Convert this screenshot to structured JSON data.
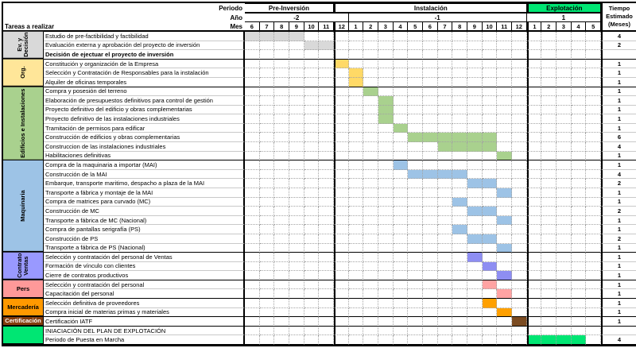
{
  "header": {
    "periodo_label": "Periodo",
    "ano_label": "Año",
    "mes_label": "Mes",
    "tareas_label": "Tareas a realizar",
    "tiempo_label": "Tiempo Estimado (Meses)",
    "periods": [
      {
        "label": "Pre-Inversión",
        "cols": 6,
        "bg": "#FFFFFF"
      },
      {
        "label": "Instalación",
        "cols": 13,
        "bg": "#FFFFFF"
      },
      {
        "label": "Explotación",
        "cols": 5,
        "bg": "#00E673"
      }
    ],
    "years": [
      {
        "label": "-2",
        "cols": 7
      },
      {
        "label": "-1",
        "cols": 12
      },
      {
        "label": "1",
        "cols": 5
      }
    ],
    "months": [
      "6",
      "7",
      "8",
      "9",
      "10",
      "11",
      "12",
      "1",
      "2",
      "3",
      "4",
      "5",
      "6",
      "7",
      "8",
      "9",
      "10",
      "11",
      "12",
      "1",
      "2",
      "3",
      "4",
      "5"
    ]
  },
  "groups": [
    {
      "label": "Ev. y Decisión",
      "bg": "#D9D9D9",
      "fg": "#000000",
      "orientation": "vertical",
      "span": 3
    },
    {
      "label": "Org.",
      "bg": "#FFE699",
      "fg": "#000000",
      "orientation": "vertical",
      "span": 3
    },
    {
      "label": "Edificios e Instalaciones",
      "bg": "#A9D18E",
      "fg": "#000000",
      "orientation": "vertical",
      "span": 8
    },
    {
      "label": "Maquinaria",
      "bg": "#9DC3E6",
      "fg": "#000000",
      "orientation": "vertical",
      "span": 10
    },
    {
      "label": "Contrato Ventas",
      "bg": "#9999FF",
      "fg": "#000000",
      "orientation": "vertical",
      "span": 3
    },
    {
      "label": "Pers",
      "bg": "#FF9999",
      "fg": "#000000",
      "orientation": "horizontal",
      "span": 2
    },
    {
      "label": "Mercadería",
      "bg": "#FF9900",
      "fg": "#000000",
      "orientation": "horizontal",
      "span": 2
    },
    {
      "label": "Certificación",
      "bg": "#843C0C",
      "fg": "#FFFFFF",
      "orientation": "horizontal",
      "span": 1
    },
    {
      "label": "",
      "bg": "#00E673",
      "fg": "#000000",
      "orientation": "horizontal",
      "span": 2
    }
  ],
  "chart_data": {
    "type": "table",
    "subtype": "gantt",
    "title": "",
    "month_columns": 24,
    "x_axis": "Meses (Año -2: 6-12, Año -1: 1-12, Año 1: 1-5)",
    "tasks": [
      {
        "task": "Estudio de pre-factibilidad y factibilidad",
        "tiempo": "4",
        "bold": false,
        "bar": {
          "start": 1,
          "len": 4,
          "color": "#D9D9D9"
        }
      },
      {
        "task": "Evaluación externa y aprobación del proyecto de inversión",
        "tiempo": "2",
        "bold": false,
        "bar": {
          "start": 5,
          "len": 2,
          "color": "#D9D9D9"
        }
      },
      {
        "task": "Decisión de ejectuar el proyecto de inversión",
        "tiempo": "",
        "bold": true,
        "bar": null
      },
      {
        "task": "Constitución y organización de la Empresa",
        "tiempo": "1",
        "bold": false,
        "bar": {
          "start": 7,
          "len": 1,
          "color": "#FFD966"
        }
      },
      {
        "task": "Selección y Contratación de Responsables para la instalación",
        "tiempo": "1",
        "bold": false,
        "bar": {
          "start": 8,
          "len": 1,
          "color": "#FFD966"
        }
      },
      {
        "task": "Alquiler de oficinas temporales",
        "tiempo": "1",
        "bold": false,
        "bar": {
          "start": 8,
          "len": 1,
          "color": "#FFD966"
        }
      },
      {
        "task": "Compra y posesión del terreno",
        "tiempo": "1",
        "bold": false,
        "bar": {
          "start": 9,
          "len": 1,
          "color": "#A9D18E"
        }
      },
      {
        "task": "Elaboración de presupuestos definitivos para control de gestión",
        "tiempo": "1",
        "bold": false,
        "bar": {
          "start": 10,
          "len": 1,
          "color": "#A9D18E"
        }
      },
      {
        "task": "Proyecto definitivo del edificio y obras complementarias",
        "tiempo": "1",
        "bold": false,
        "bar": {
          "start": 10,
          "len": 1,
          "color": "#A9D18E"
        }
      },
      {
        "task": "Proyecto definitivo de las instalaciones industriales",
        "tiempo": "1",
        "bold": false,
        "bar": {
          "start": 10,
          "len": 1,
          "color": "#A9D18E"
        }
      },
      {
        "task": "Tramitación de permisos para edificar",
        "tiempo": "1",
        "bold": false,
        "bar": {
          "start": 11,
          "len": 1,
          "color": "#A9D18E"
        }
      },
      {
        "task": "Construcción de edificios y obras complementarias",
        "tiempo": "6",
        "bold": false,
        "bar": {
          "start": 12,
          "len": 6,
          "color": "#A9D18E"
        }
      },
      {
        "task": "Construccion de las instalaciones industriales",
        "tiempo": "4",
        "bold": false,
        "bar": {
          "start": 14,
          "len": 4,
          "color": "#A9D18E"
        }
      },
      {
        "task": "Habilitaciones definitivas",
        "tiempo": "1",
        "bold": false,
        "bar": {
          "start": 18,
          "len": 1,
          "color": "#A9D18E"
        }
      },
      {
        "task": "Compra de la maquinaria a importar (MAI)",
        "tiempo": "1",
        "bold": false,
        "bar": {
          "start": 11,
          "len": 1,
          "color": "#9DC3E6"
        }
      },
      {
        "task": "Construcción de la MAI",
        "tiempo": "4",
        "bold": false,
        "bar": {
          "start": 12,
          "len": 4,
          "color": "#9DC3E6"
        }
      },
      {
        "task": "Embarque, transporte maritimo, despacho a plaza de la MAI",
        "tiempo": "2",
        "bold": false,
        "bar": {
          "start": 16,
          "len": 2,
          "color": "#9DC3E6"
        }
      },
      {
        "task": "Transporte a fábrica y montaje de la MAI",
        "tiempo": "1",
        "bold": false,
        "bar": {
          "start": 18,
          "len": 1,
          "color": "#9DC3E6"
        }
      },
      {
        "task": "Compra de matrices para curvado (MC)",
        "tiempo": "1",
        "bold": false,
        "bar": {
          "start": 15,
          "len": 1,
          "color": "#9DC3E6"
        }
      },
      {
        "task": "Construcción de MC",
        "tiempo": "2",
        "bold": false,
        "bar": {
          "start": 16,
          "len": 2,
          "color": "#9DC3E6"
        }
      },
      {
        "task": "Transporte a fábrica de MC (Nacional)",
        "tiempo": "1",
        "bold": false,
        "bar": {
          "start": 18,
          "len": 1,
          "color": "#9DC3E6"
        }
      },
      {
        "task": "Compra de pantallas serigrafía (PS)",
        "tiempo": "1",
        "bold": false,
        "bar": {
          "start": 15,
          "len": 1,
          "color": "#9DC3E6"
        }
      },
      {
        "task": "Construcción de PS",
        "tiempo": "2",
        "bold": false,
        "bar": {
          "start": 16,
          "len": 2,
          "color": "#9DC3E6"
        }
      },
      {
        "task": "Transporte a fábrica de PS (Nacional)",
        "tiempo": "1",
        "bold": false,
        "bar": {
          "start": 18,
          "len": 1,
          "color": "#9DC3E6"
        }
      },
      {
        "task": "Selección y contratación del personal de Ventas",
        "tiempo": "1",
        "bold": false,
        "bar": {
          "start": 16,
          "len": 1,
          "color": "#8E8EF2"
        }
      },
      {
        "task": "Formación de vínculo con clientes",
        "tiempo": "1",
        "bold": false,
        "bar": {
          "start": 17,
          "len": 1,
          "color": "#8E8EF2"
        }
      },
      {
        "task": "Cierre de contratos productivos",
        "tiempo": "1",
        "bold": false,
        "bar": {
          "start": 18,
          "len": 1,
          "color": "#8E8EF2"
        }
      },
      {
        "task": "Selección y contratación del personal",
        "tiempo": "1",
        "bold": false,
        "bar": {
          "start": 17,
          "len": 1,
          "color": "#FFA3A3"
        }
      },
      {
        "task": "Capacitación del personal",
        "tiempo": "1",
        "bold": false,
        "bar": {
          "start": 18,
          "len": 1,
          "color": "#FFA3A3"
        }
      },
      {
        "task": "Selección definitiva de proveedores",
        "tiempo": "1",
        "bold": false,
        "bar": {
          "start": 17,
          "len": 1,
          "color": "#FFA000"
        }
      },
      {
        "task": "Compra inicial de materias primas y materiales",
        "tiempo": "1",
        "bold": false,
        "bar": {
          "start": 18,
          "len": 1,
          "color": "#FFA000"
        }
      },
      {
        "task": "Certificación IATF",
        "tiempo": "1",
        "bold": false,
        "bar": {
          "start": 19,
          "len": 1,
          "color": "#7B4B21"
        }
      },
      {
        "task": "INIACIACIÓN DEL PLAN DE EXPLOTACIÓN",
        "tiempo": "",
        "bold": false,
        "bar": null
      },
      {
        "task": "Periodo de Puesta en Marcha",
        "tiempo": "4",
        "bold": false,
        "bar": {
          "start": 20,
          "len": 4,
          "color": "#00E673"
        }
      }
    ]
  }
}
